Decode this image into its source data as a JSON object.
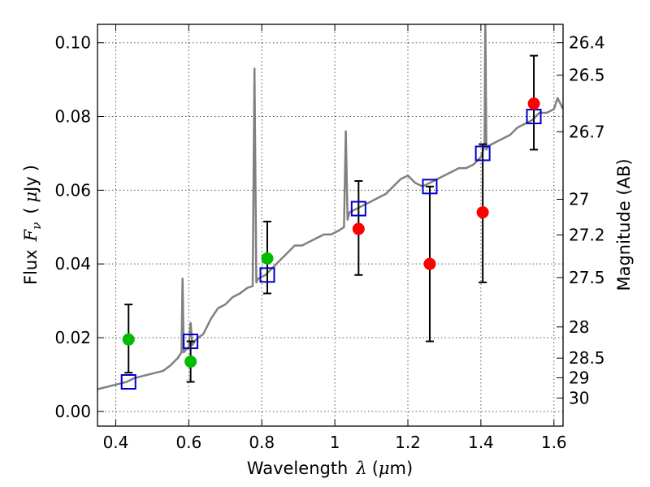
{
  "chart_data": {
    "type": "scatter",
    "xlabel": "Wavelength",
    "xlabel_symbol": "λ",
    "xlabel_unit_open": "(",
    "xlabel_unit_mu": "μ",
    "xlabel_unit_rest": "m)",
    "ylabel": "Flux",
    "ylabel_symbol": "F",
    "ylabel_subscript": "ν",
    "ylabel_unit_open": "(",
    "ylabel_unit_mu": "μ",
    "ylabel_unit_rest": "Jy",
    "ylabel_unit_close": ")",
    "y2label": "Magnitude (AB)",
    "xlim": [
      0.35,
      1.625
    ],
    "ylim": [
      -0.004,
      0.105
    ],
    "grid": true,
    "x_ticks": [
      0.4,
      0.6,
      0.8,
      1.0,
      1.2,
      1.4,
      1.6
    ],
    "x_tick_labels": [
      "0.4",
      "0.6",
      "0.8",
      "1",
      "1.2",
      "1.4",
      "1.6"
    ],
    "y_ticks": [
      0.0,
      0.02,
      0.04,
      0.06,
      0.08,
      0.1
    ],
    "y_tick_labels": [
      "0.00",
      "0.02",
      "0.04",
      "0.06",
      "0.08",
      "0.10"
    ],
    "mag_ticks": [
      26.4,
      26.5,
      26.7,
      27,
      27.2,
      27.5,
      28,
      28.5,
      29,
      30
    ],
    "mag_tick_labels": [
      "26.4",
      "26.5",
      "26.7",
      "27",
      "27.2",
      "27.5",
      "28",
      "28.5",
      "29",
      "30"
    ],
    "spectrum": {
      "color": "#808080",
      "x": [
        0.35,
        0.37,
        0.39,
        0.41,
        0.43,
        0.45,
        0.47,
        0.49,
        0.51,
        0.53,
        0.55,
        0.57,
        0.58,
        0.583,
        0.586,
        0.59,
        0.6,
        0.605,
        0.61,
        0.62,
        0.64,
        0.66,
        0.68,
        0.7,
        0.72,
        0.74,
        0.76,
        0.775,
        0.78,
        0.785,
        0.79,
        0.81,
        0.83,
        0.85,
        0.87,
        0.89,
        0.91,
        0.93,
        0.95,
        0.97,
        0.99,
        1.01,
        1.025,
        1.03,
        1.035,
        1.04,
        1.06,
        1.08,
        1.1,
        1.12,
        1.14,
        1.16,
        1.18,
        1.2,
        1.22,
        1.24,
        1.26,
        1.28,
        1.3,
        1.32,
        1.34,
        1.36,
        1.38,
        1.4,
        1.41,
        1.412,
        1.415,
        1.42,
        1.44,
        1.46,
        1.48,
        1.5,
        1.52,
        1.54,
        1.56,
        1.58,
        1.6,
        1.61,
        1.625
      ],
      "y": [
        0.006,
        0.0065,
        0.007,
        0.0075,
        0.008,
        0.009,
        0.0095,
        0.01,
        0.0105,
        0.011,
        0.0125,
        0.0145,
        0.016,
        0.036,
        0.016,
        0.0165,
        0.0175,
        0.024,
        0.018,
        0.0195,
        0.021,
        0.025,
        0.028,
        0.029,
        0.031,
        0.032,
        0.0335,
        0.034,
        0.093,
        0.035,
        0.036,
        0.037,
        0.039,
        0.041,
        0.043,
        0.045,
        0.045,
        0.046,
        0.047,
        0.048,
        0.048,
        0.049,
        0.05,
        0.076,
        0.052,
        0.054,
        0.055,
        0.056,
        0.057,
        0.058,
        0.059,
        0.061,
        0.063,
        0.064,
        0.062,
        0.061,
        0.062,
        0.063,
        0.064,
        0.065,
        0.066,
        0.066,
        0.067,
        0.069,
        0.072,
        0.108,
        0.071,
        0.072,
        0.073,
        0.074,
        0.075,
        0.077,
        0.078,
        0.079,
        0.081,
        0.081,
        0.082,
        0.085,
        0.082
      ]
    },
    "model_points": {
      "color": "#0000cc",
      "marker": "open-square",
      "x": [
        0.435,
        0.605,
        0.815,
        1.065,
        1.26,
        1.405,
        1.545
      ],
      "y": [
        0.008,
        0.019,
        0.037,
        0.055,
        0.061,
        0.07,
        0.08
      ]
    },
    "green_points": {
      "color": "#00bb00",
      "x": [
        0.435,
        0.605,
        0.815
      ],
      "y": [
        0.0195,
        0.0135,
        0.0415
      ]
    },
    "red_points": {
      "color": "#ff0000",
      "x": [
        1.065,
        1.26,
        1.405,
        1.545
      ],
      "y": [
        0.0495,
        0.04,
        0.054,
        0.0835
      ]
    },
    "error_bars": {
      "color": "#000000",
      "x": [
        0.435,
        0.605,
        0.815,
        1.065,
        1.26,
        1.405,
        1.545
      ],
      "low": [
        0.0105,
        0.008,
        0.032,
        0.037,
        0.019,
        0.035,
        0.071
      ],
      "high": [
        0.029,
        0.019,
        0.0515,
        0.0625,
        0.061,
        0.0725,
        0.0965
      ]
    }
  }
}
